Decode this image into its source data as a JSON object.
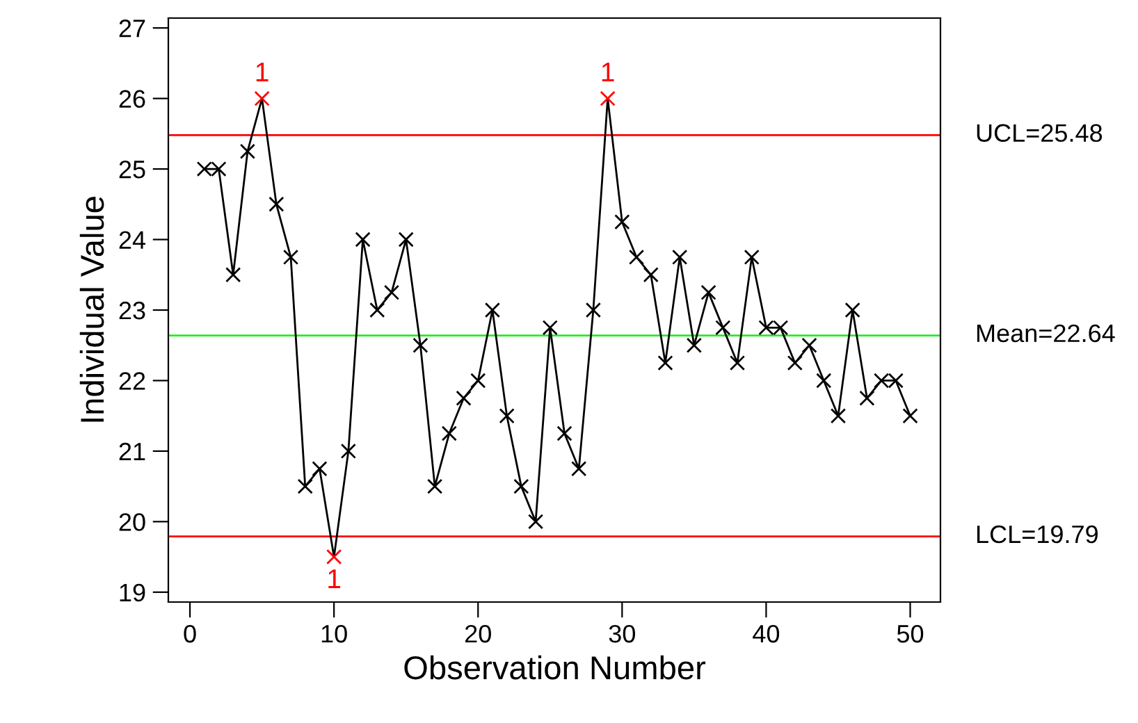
{
  "chart_data": {
    "type": "line",
    "xlabel": "Observation Number",
    "ylabel": "Individual Value",
    "x": [
      1,
      2,
      3,
      4,
      5,
      6,
      7,
      8,
      9,
      10,
      11,
      12,
      13,
      14,
      15,
      16,
      17,
      18,
      19,
      20,
      21,
      22,
      23,
      24,
      25,
      26,
      27,
      28,
      29,
      30,
      31,
      32,
      33,
      34,
      35,
      36,
      37,
      38,
      39,
      40,
      41,
      42,
      43,
      44,
      45,
      46,
      47,
      48,
      49,
      50
    ],
    "series": [
      {
        "color": "#000000",
        "values": [
          25,
          25,
          23.5,
          25.25,
          26,
          24.5,
          23.75,
          20.5,
          20.75,
          19.5,
          21,
          24,
          23,
          23.25,
          24,
          22.5,
          20.5,
          21.25,
          21.75,
          22,
          23,
          21.5,
          20.5,
          20,
          22.75,
          21.25,
          20.75,
          23,
          26,
          24.25,
          23.75,
          23.5,
          22.25,
          23.75,
          22.5,
          23.25,
          22.75,
          22.25,
          23.75,
          22.75,
          22.75,
          22.25,
          22.5,
          22,
          21.5,
          23,
          21.75,
          22,
          22,
          21.5
        ],
        "colors": [
          "#000000",
          "#000000",
          "#000000",
          "#000000",
          "#ff0000",
          "#000000",
          "#000000",
          "#000000",
          "#000000",
          "#ff0000",
          "#000000",
          "#000000",
          "#000000",
          "#000000",
          "#000000",
          "#000000",
          "#000000",
          "#000000",
          "#000000",
          "#000000",
          "#000000",
          "#000000",
          "#000000",
          "#000000",
          "#000000",
          "#000000",
          "#000000",
          "#000000",
          "#ff0000",
          "#000000",
          "#000000",
          "#000000",
          "#000000",
          "#000000",
          "#000000",
          "#000000",
          "#000000",
          "#000000",
          "#000000",
          "#000000",
          "#000000",
          "#000000",
          "#000000",
          "#000000",
          "#000000",
          "#000000",
          "#000000",
          "#000000",
          "#000000",
          "#000000"
        ]
      }
    ],
    "marker": "cross",
    "line_style": "solid",
    "xlim": [
      -1.5,
      52.1
    ],
    "xticks": [
      0,
      10,
      20,
      30,
      40,
      50
    ],
    "ylim": [
      18.86,
      27.14
    ],
    "yticks": [
      19,
      20,
      21,
      22,
      23,
      24,
      25,
      26,
      27
    ],
    "grid": false,
    "ref_lines": [
      {
        "axis": "y",
        "value": 25.48,
        "label": "UCL=25.48",
        "color": "#ff0000"
      },
      {
        "axis": "y",
        "value": 22.64,
        "label": "Mean=22.64",
        "color": "#22ee22"
      },
      {
        "axis": "y",
        "value": 19.79,
        "label": "LCL=19.79",
        "color": "#ff0000"
      }
    ],
    "annotations": [
      {
        "text": "1",
        "x": 5,
        "y": 26
      },
      {
        "text": "1",
        "x": 10,
        "y": 19.5
      },
      {
        "text": "1",
        "x": 29,
        "y": 26
      }
    ]
  }
}
